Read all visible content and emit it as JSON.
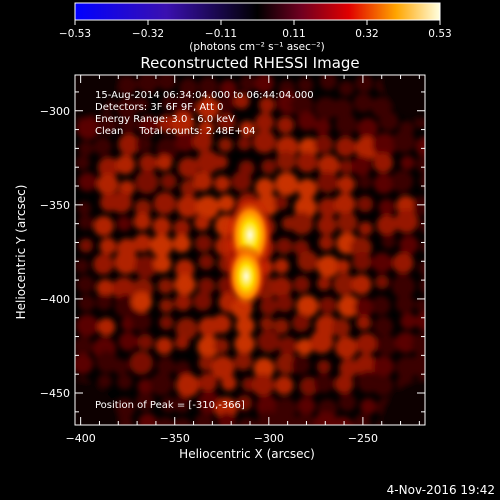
{
  "chart_data": {
    "type": "heatmap",
    "title": "Reconstructed RHESSI Image",
    "xlabel": "Heliocentric X (arcsec)",
    "ylabel": "Heliocentric Y (arcsec)",
    "xlim": [
      -403,
      -217
    ],
    "ylim": [
      -467,
      -281
    ],
    "x_ticks": [
      -400,
      -350,
      -300,
      -250
    ],
    "y_ticks": [
      -300,
      -350,
      -400,
      -450
    ],
    "colorbar": {
      "min": -0.53,
      "max": 0.53,
      "ticks": [
        "-0.53",
        "-0.32",
        "-0.11",
        "0.11",
        "0.32",
        "0.53"
      ],
      "unit_label": "(photons cm⁻² s⁻¹ asec⁻²)"
    },
    "annotations": [
      "15-Aug-2014 06:34:04.000 to 06:44:04.000",
      "Detectors: 3F 6F 9F, Att 0",
      "Energy Range: 3.0 - 6.0 keV",
      "Clean     Total counts: 2.48E+04"
    ],
    "peak_label": "Position of Peak = [-310,-366]",
    "peak": [
      -310,
      -366
    ],
    "sources": [
      {
        "x": -310,
        "y": -366,
        "level": 0.53
      },
      {
        "x": -312,
        "y": -388,
        "level": 0.4
      }
    ],
    "colors": {
      "low": "#0000ff",
      "mid": "#000000",
      "high": "#ffffe0"
    }
  },
  "timestamp": "4-Nov-2016 19:42"
}
